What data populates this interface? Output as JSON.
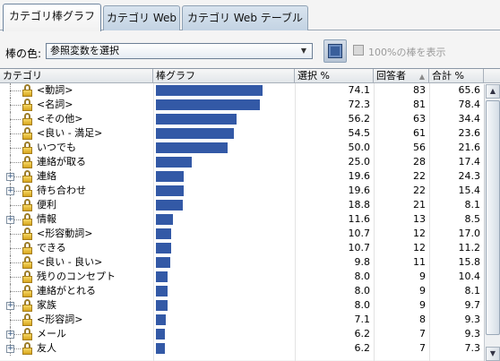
{
  "tabs": [
    "カテゴリ棒グラフ",
    "カテゴリ Web",
    "カテゴリ Web テーブル"
  ],
  "toolbar": {
    "bar_color_label": "棒の色:",
    "select_value": "参照変数を選択",
    "show_100_label": "100%の棒を表示",
    "color_swatch": "#3a5f9b"
  },
  "columns": {
    "category": "カテゴリ",
    "bar": "棒グラフ",
    "pct": "選択 %",
    "count": "回答者",
    "total": "合計 %"
  },
  "bar_color": "#3359a6",
  "rows": [
    {
      "label": "<動詞>",
      "pct": "74.1",
      "count": "83",
      "total": "65.6",
      "expandable": false
    },
    {
      "label": "<名詞>",
      "pct": "72.3",
      "count": "81",
      "total": "78.4",
      "expandable": false
    },
    {
      "label": "<その他>",
      "pct": "56.2",
      "count": "63",
      "total": "34.4",
      "expandable": false
    },
    {
      "label": "<良い - 満足>",
      "pct": "54.5",
      "count": "61",
      "total": "23.6",
      "expandable": false
    },
    {
      "label": "いつでも",
      "pct": "50.0",
      "count": "56",
      "total": "21.6",
      "expandable": false
    },
    {
      "label": "連絡が取る",
      "pct": "25.0",
      "count": "28",
      "total": "17.4",
      "expandable": false
    },
    {
      "label": "連絡",
      "pct": "19.6",
      "count": "22",
      "total": "24.3",
      "expandable": true
    },
    {
      "label": "待ち合わせ",
      "pct": "19.6",
      "count": "22",
      "total": "15.4",
      "expandable": true
    },
    {
      "label": "便利",
      "pct": "18.8",
      "count": "21",
      "total": "8.1",
      "expandable": false
    },
    {
      "label": "情報",
      "pct": "11.6",
      "count": "13",
      "total": "8.5",
      "expandable": true
    },
    {
      "label": "<形容動詞>",
      "pct": "10.7",
      "count": "12",
      "total": "17.0",
      "expandable": false
    },
    {
      "label": "できる",
      "pct": "10.7",
      "count": "12",
      "total": "11.2",
      "expandable": false
    },
    {
      "label": "<良い - 良い>",
      "pct": "9.8",
      "count": "11",
      "total": "15.8",
      "expandable": false
    },
    {
      "label": "残りのコンセプト",
      "pct": "8.0",
      "count": "9",
      "total": "10.4",
      "expandable": false
    },
    {
      "label": "連絡がとれる",
      "pct": "8.0",
      "count": "9",
      "total": "8.1",
      "expandable": false
    },
    {
      "label": "家族",
      "pct": "8.0",
      "count": "9",
      "total": "9.7",
      "expandable": true
    },
    {
      "label": "<形容詞>",
      "pct": "7.1",
      "count": "8",
      "total": "9.3",
      "expandable": false
    },
    {
      "label": "メール",
      "pct": "6.2",
      "count": "7",
      "total": "9.3",
      "expandable": true
    },
    {
      "label": "友人",
      "pct": "6.2",
      "count": "7",
      "total": "7.3",
      "expandable": true
    }
  ]
}
